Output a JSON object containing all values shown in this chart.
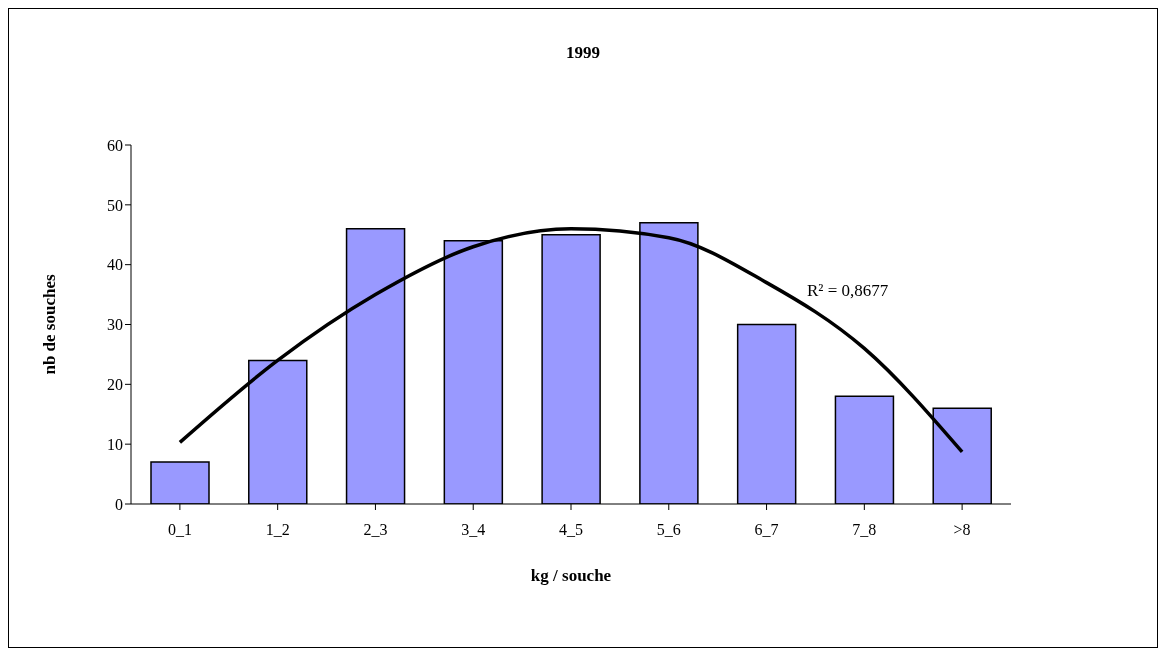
{
  "chart_data": {
    "type": "bar",
    "title": "1999",
    "xlabel": "kg / souche",
    "ylabel": "nb de souches",
    "categories": [
      "0_1",
      "1_2",
      "2_3",
      "3_4",
      "4_5",
      "5_6",
      "6_7",
      "7_8",
      ">8"
    ],
    "series": [
      {
        "color": "#9999ff",
        "values": [
          7,
          24,
          46,
          44,
          45,
          47,
          30,
          18,
          16
        ]
      },
      {
        "type": "line",
        "color": "#000000",
        "values": [
          10.3,
          24,
          35,
          43,
          46,
          44.5,
          37,
          26,
          8.7
        ]
      }
    ],
    "annotations": [
      "R² = 0,8677"
    ],
    "ylim": [
      0,
      60
    ],
    "yticks": [
      0,
      10,
      20,
      30,
      40,
      50,
      60
    ],
    "marker": "none",
    "line_style": "solid"
  }
}
